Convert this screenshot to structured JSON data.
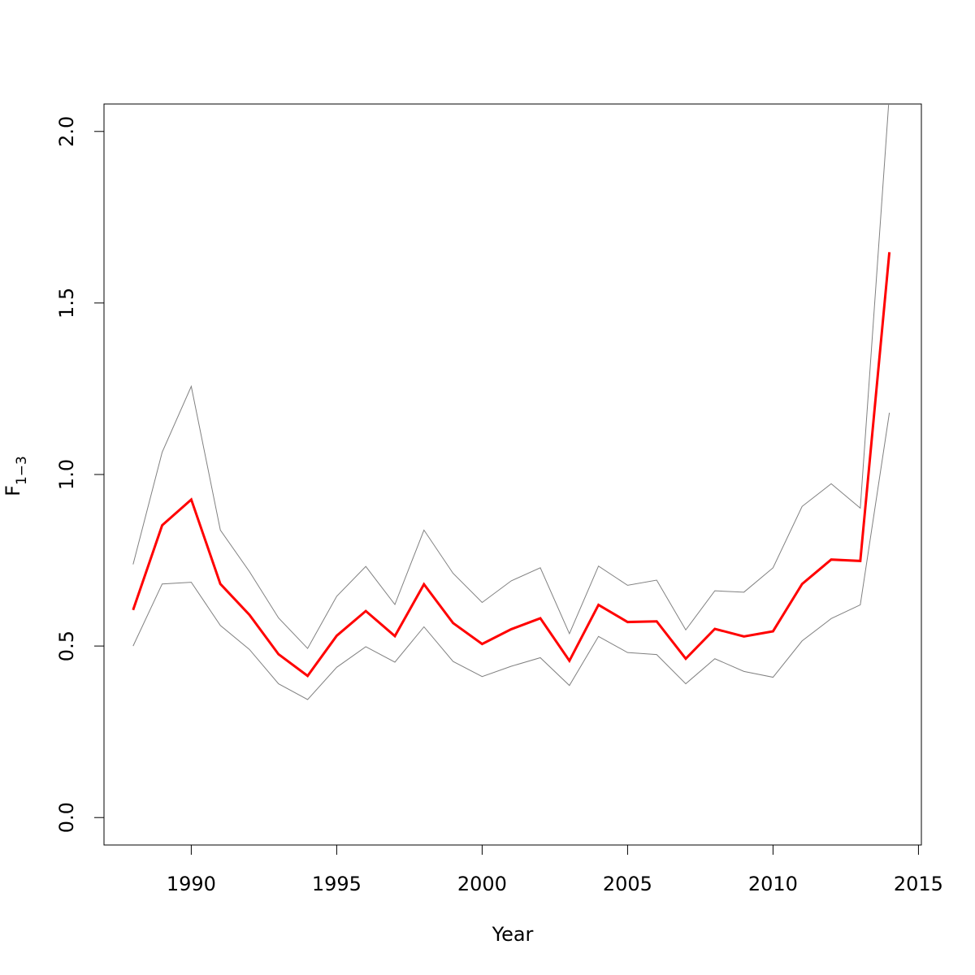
{
  "chart_data": {
    "type": "line",
    "xlabel": "Year",
    "ylabel_main": "F",
    "ylabel_sub": "1−3",
    "xlim": [
      1987,
      2015.1
    ],
    "ylim": [
      -0.08,
      2.08
    ],
    "x_ticks": [
      1990,
      1995,
      2000,
      2005,
      2010,
      2015
    ],
    "y_ticks": [
      0.0,
      0.5,
      1.0,
      1.5,
      2.0
    ],
    "x_tick_labels": [
      "1990",
      "1995",
      "2000",
      "2005",
      "2010",
      "2015"
    ],
    "y_tick_labels": [
      "0.0",
      "0.5",
      "1.0",
      "1.5",
      "2.0"
    ],
    "grid": false,
    "x": [
      1988,
      1989,
      1990,
      1991,
      1992,
      1993,
      1994,
      1995,
      1996,
      1997,
      1998,
      1999,
      2000,
      2001,
      2002,
      2003,
      2004,
      2005,
      2006,
      2007,
      2008,
      2009,
      2010,
      2011,
      2012,
      2013,
      2014
    ],
    "series": [
      {
        "role": "estimate",
        "color": "#ff0000",
        "values": [
          0.605,
          0.852,
          0.927,
          0.681,
          0.591,
          0.476,
          0.413,
          0.53,
          0.602,
          0.529,
          0.68,
          0.567,
          0.506,
          0.549,
          0.581,
          0.457,
          0.62,
          0.57,
          0.572,
          0.463,
          0.55,
          0.528,
          0.543,
          0.681,
          0.752,
          0.748,
          1.648
        ]
      },
      {
        "role": "upper",
        "color": "#808080",
        "values": [
          0.738,
          1.065,
          1.257,
          0.838,
          0.717,
          0.582,
          0.493,
          0.645,
          0.732,
          0.621,
          0.838,
          0.712,
          0.627,
          0.69,
          0.728,
          0.536,
          0.733,
          0.677,
          0.692,
          0.547,
          0.661,
          0.657,
          0.728,
          0.907,
          0.973,
          0.902,
          2.11
        ]
      },
      {
        "role": "lower",
        "color": "#808080",
        "values": [
          0.5,
          0.681,
          0.686,
          0.56,
          0.49,
          0.39,
          0.344,
          0.438,
          0.498,
          0.453,
          0.556,
          0.455,
          0.411,
          0.441,
          0.466,
          0.385,
          0.528,
          0.481,
          0.475,
          0.39,
          0.463,
          0.426,
          0.409,
          0.515,
          0.58,
          0.62,
          1.18
        ]
      }
    ]
  }
}
